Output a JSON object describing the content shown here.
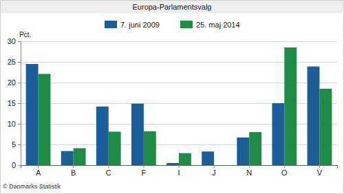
{
  "chart_data": {
    "type": "bar",
    "title": "Europa-Parlamentsvalg",
    "y_label": "Pct.",
    "annotations": [
      "© Danmarks Statistik"
    ],
    "categories": [
      "A",
      "B",
      "C",
      "F",
      "I",
      "J",
      "N",
      "O",
      "V"
    ],
    "series": [
      {
        "name": "7. juni 2009",
        "color": "#1c5f98",
        "values": [
          24.5,
          3.4,
          14.2,
          14.9,
          0.5,
          3.3,
          6.7,
          15.0,
          23.9
        ]
      },
      {
        "name": "25. maj 2014",
        "color": "#1e8b47",
        "values": [
          22.1,
          4.1,
          8.1,
          8.2,
          2.9,
          null,
          8.0,
          28.5,
          18.5
        ]
      }
    ],
    "ylim": [
      0,
      30
    ],
    "yticks": [
      0,
      5,
      10,
      15,
      20,
      25,
      30
    ],
    "grid": true,
    "legend": "top"
  }
}
